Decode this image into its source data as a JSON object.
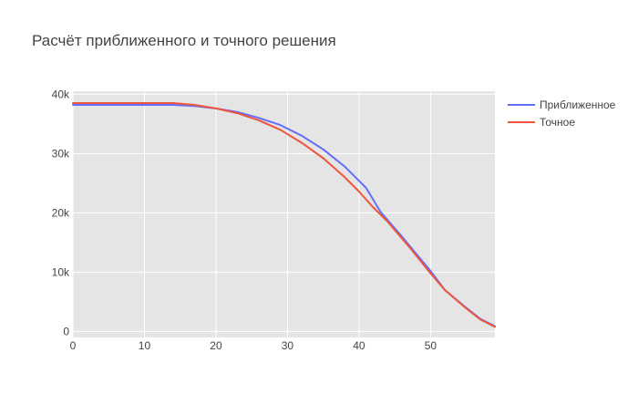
{
  "chart_data": {
    "type": "line",
    "title": "Расчёт приближенного и точного решения",
    "xlabel": "",
    "ylabel": "",
    "xlim": [
      0,
      59
    ],
    "ylim": [
      -1000,
      40500
    ],
    "x_ticks": [
      0,
      10,
      20,
      30,
      40,
      50
    ],
    "y_ticks": [
      0,
      10000,
      20000,
      30000,
      40000
    ],
    "y_tick_labels": [
      "0",
      "10k",
      "20k",
      "30k",
      "40k"
    ],
    "grid": true,
    "legend_position": "top-right",
    "series": [
      {
        "name": "Приближенное",
        "color": "#636efa",
        "x": [
          0,
          5,
          10,
          14,
          17,
          20,
          23,
          26,
          29,
          32,
          35,
          38,
          41,
          42,
          43,
          46,
          50,
          52,
          55,
          57,
          59
        ],
        "y": [
          38200,
          38200,
          38200,
          38200,
          38000,
          37600,
          37000,
          36000,
          34800,
          33000,
          30700,
          27800,
          24200,
          22200,
          20200,
          16000,
          10200,
          7000,
          4000,
          2100,
          900
        ]
      },
      {
        "name": "Точное",
        "color": "#ef553b",
        "x": [
          0,
          5,
          10,
          14,
          17,
          20,
          23,
          26,
          29,
          32,
          35,
          38,
          40,
          42,
          44,
          47,
          50,
          52,
          55,
          57,
          59
        ],
        "y": [
          38500,
          38500,
          38500,
          38500,
          38200,
          37600,
          36800,
          35600,
          34000,
          31800,
          29200,
          26000,
          23600,
          20900,
          18500,
          14300,
          9800,
          7000,
          3900,
          2000,
          800
        ]
      }
    ]
  }
}
